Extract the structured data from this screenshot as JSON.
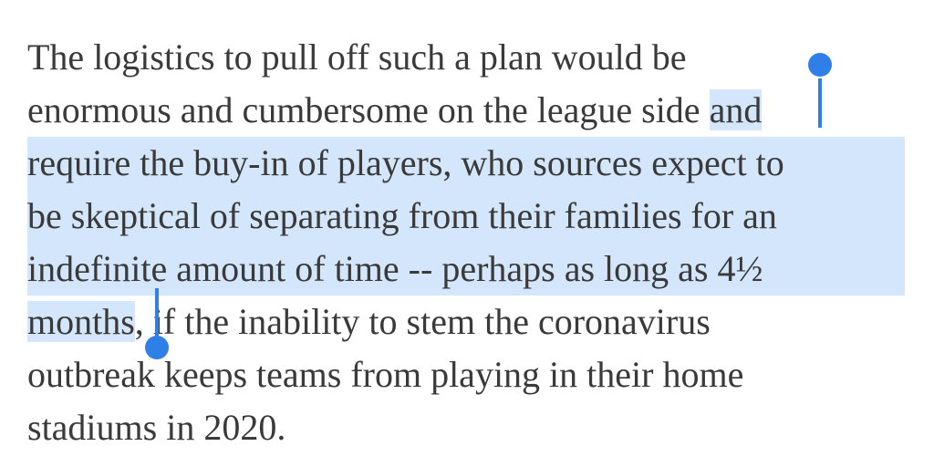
{
  "article": {
    "line1": "The logistics to pull off such a plan would be",
    "line2_plain": "enormous and cumbersome on the league side ",
    "line2_selected": "and",
    "line3_selected": "require the buy-in of players, who sources expect to",
    "line4_selected": "be skeptical of separating from their families for an",
    "line5_selected": "indefinite amount of time -- perhaps as long as 4½",
    "line6_selected": "months",
    "line6_plain": ", if the inability to stem the coronavirus",
    "line7": "outbreak keeps teams from playing in their home",
    "line8": "stadiums in 2020."
  },
  "selection": {
    "highlight_color": "#d4e6fb",
    "handle_color": "#2f7fe8"
  }
}
